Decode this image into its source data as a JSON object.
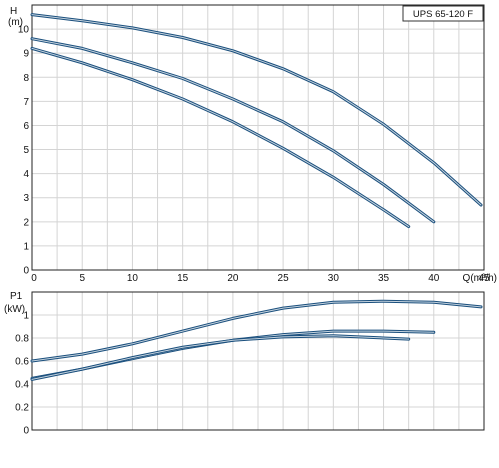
{
  "chart_data": [
    {
      "id": "head",
      "type": "line",
      "title": "UPS 65-120 F",
      "xlabel": "Q(m³/h)",
      "ylabel": "H",
      "ylabel_unit": "(m)",
      "xlim": [
        0,
        45
      ],
      "ylim": [
        0,
        11
      ],
      "grid": true,
      "x_ticks": [
        "0",
        "5",
        "10",
        "15",
        "20",
        "25",
        "30",
        "35",
        "40",
        "45"
      ],
      "y_ticks": [
        "0",
        "1",
        "2",
        "3",
        "4",
        "5",
        "6",
        "7",
        "8",
        "9",
        "10"
      ],
      "colors": {
        "curve": "#1a4f7d",
        "grid": "#d4d4d4",
        "frame": "#222222"
      },
      "series": [
        {
          "x": [
            0,
            5,
            10,
            15,
            20,
            25,
            30,
            35,
            40,
            44.7
          ],
          "y": [
            10.6,
            10.35,
            10.05,
            9.65,
            9.1,
            8.35,
            7.4,
            6.05,
            4.45,
            2.7
          ]
        },
        {
          "x": [
            0,
            5,
            10,
            15,
            20,
            25,
            30,
            35,
            40
          ],
          "y": [
            9.6,
            9.2,
            8.6,
            7.95,
            7.1,
            6.15,
            4.95,
            3.55,
            2.0
          ]
        },
        {
          "x": [
            0,
            5,
            10,
            15,
            20,
            25,
            30,
            35,
            37.5
          ],
          "y": [
            9.2,
            8.6,
            7.9,
            7.1,
            6.15,
            5.05,
            3.85,
            2.5,
            1.8
          ]
        }
      ]
    },
    {
      "id": "power",
      "type": "line",
      "xlabel": "",
      "ylabel": "P1",
      "ylabel_unit": "(kW)",
      "xlim": [
        0,
        45
      ],
      "ylim": [
        0,
        1.2
      ],
      "grid": true,
      "y_ticks": [
        "0",
        "0.2",
        "0.4",
        "0.6",
        "0.8",
        "1"
      ],
      "colors": {
        "curve": "#1a4f7d",
        "grid": "#d4d4d4",
        "frame": "#222222"
      },
      "series": [
        {
          "x": [
            0,
            5,
            10,
            15,
            20,
            25,
            30,
            35,
            40,
            44.7
          ],
          "y": [
            0.6,
            0.66,
            0.75,
            0.86,
            0.97,
            1.06,
            1.11,
            1.12,
            1.11,
            1.07
          ]
        },
        {
          "x": [
            0,
            5,
            10,
            15,
            20,
            25,
            30,
            35,
            40
          ],
          "y": [
            0.45,
            0.53,
            0.62,
            0.71,
            0.78,
            0.83,
            0.86,
            0.86,
            0.85
          ]
        },
        {
          "x": [
            0,
            5,
            10,
            15,
            20,
            25,
            30,
            35,
            37.5
          ],
          "y": [
            0.44,
            0.53,
            0.63,
            0.72,
            0.78,
            0.81,
            0.82,
            0.8,
            0.79
          ]
        }
      ]
    }
  ]
}
